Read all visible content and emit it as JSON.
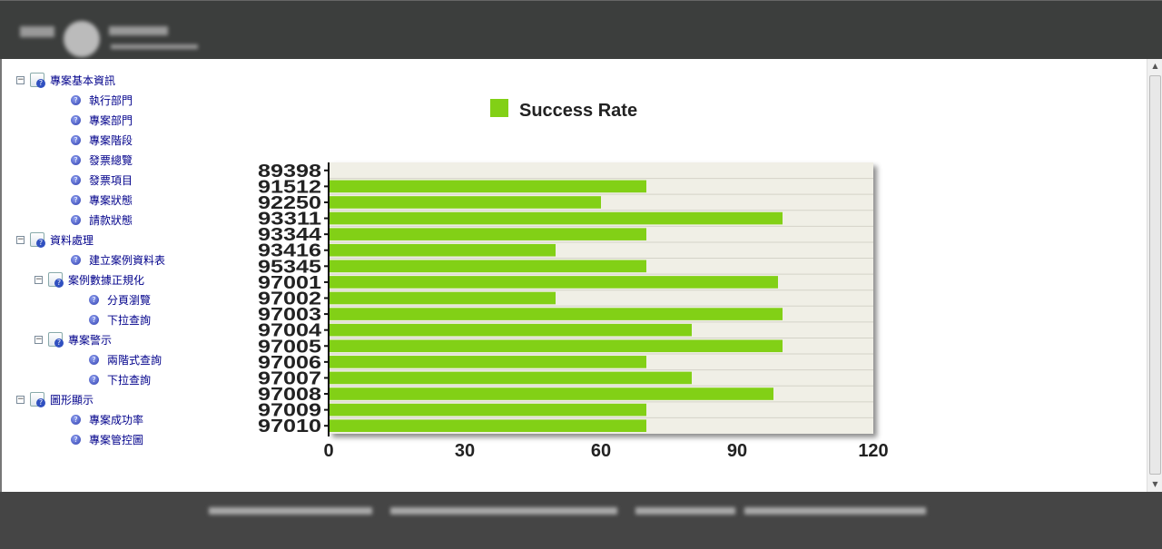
{
  "sidebar": {
    "items": [
      {
        "label": "專案基本資訊",
        "level": 0,
        "type": "folder"
      },
      {
        "label": "執行部門",
        "level": 1,
        "type": "leaf"
      },
      {
        "label": "專案部門",
        "level": 1,
        "type": "leaf"
      },
      {
        "label": "專案階段",
        "level": 1,
        "type": "leaf"
      },
      {
        "label": "發票總覽",
        "level": 1,
        "type": "leaf"
      },
      {
        "label": "發票項目",
        "level": 1,
        "type": "leaf"
      },
      {
        "label": "專案狀態",
        "level": 1,
        "type": "leaf"
      },
      {
        "label": "請款狀態",
        "level": 1,
        "type": "leaf"
      },
      {
        "label": "資料處理",
        "level": 0,
        "type": "folder"
      },
      {
        "label": "建立案例資料表",
        "level": 1,
        "type": "leaf"
      },
      {
        "label": "案例數據正規化",
        "level": 1,
        "type": "folder"
      },
      {
        "label": "分頁瀏覽",
        "level": 2,
        "type": "leaf"
      },
      {
        "label": "下拉查詢",
        "level": 2,
        "type": "leaf"
      },
      {
        "label": "專案警示",
        "level": 1,
        "type": "folder"
      },
      {
        "label": "兩階式查詢",
        "level": 2,
        "type": "leaf"
      },
      {
        "label": "下拉查詢",
        "level": 2,
        "type": "leaf"
      },
      {
        "label": "圖形顯示",
        "level": 0,
        "type": "folder"
      },
      {
        "label": "專案成功率",
        "level": 1,
        "type": "leaf"
      },
      {
        "label": "專案管控圖",
        "level": 1,
        "type": "leaf"
      }
    ]
  },
  "colors": {
    "bar": "#82d016",
    "plot_bg": "#f0efe6",
    "header": "#3c3e3d",
    "footer": "#454545"
  },
  "chart_data": {
    "type": "bar",
    "orientation": "horizontal",
    "title": "",
    "legend": [
      "Success Rate"
    ],
    "legend_position": "top-center",
    "categories": [
      "89398",
      "91512",
      "92250",
      "93311",
      "93344",
      "93416",
      "95345",
      "97001",
      "97002",
      "97003",
      "97004",
      "97005",
      "97006",
      "97007",
      "97008",
      "97009",
      "97010"
    ],
    "series": [
      {
        "name": "Success Rate",
        "values": [
          0,
          70,
          60,
          100,
          70,
          50,
          70,
          99,
          50,
          100,
          80,
          100,
          70,
          80,
          98,
          70,
          70
        ]
      }
    ],
    "xlim": [
      0,
      120
    ],
    "xticks": [
      "0",
      "30",
      "60",
      "90",
      "120"
    ],
    "grid": true
  }
}
